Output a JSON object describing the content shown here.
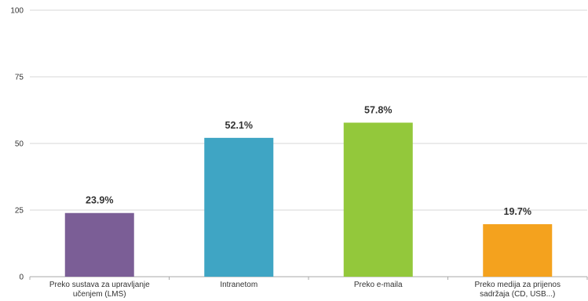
{
  "chart_data": {
    "type": "bar",
    "title": "",
    "xlabel": "",
    "ylabel": "",
    "ylim": [
      0,
      100
    ],
    "yticks": [
      "0",
      "25",
      "50",
      "75",
      "100"
    ],
    "grid": true,
    "categories": [
      [
        "Preko sustava za upravljanje",
        "učenjem (LMS)"
      ],
      [
        "Intranetom"
      ],
      [
        "Preko e-maila"
      ],
      [
        "Preko medija za prijenos",
        "sadržaja (CD, USB...)"
      ]
    ],
    "values": [
      23.9,
      52.1,
      57.8,
      19.7
    ],
    "data_labels": [
      "23.9%",
      "52.1%",
      "57.8%",
      "19.7%"
    ],
    "colors": [
      "#7b5e96",
      "#3fa5c4",
      "#93c83b",
      "#f4a21e"
    ]
  }
}
